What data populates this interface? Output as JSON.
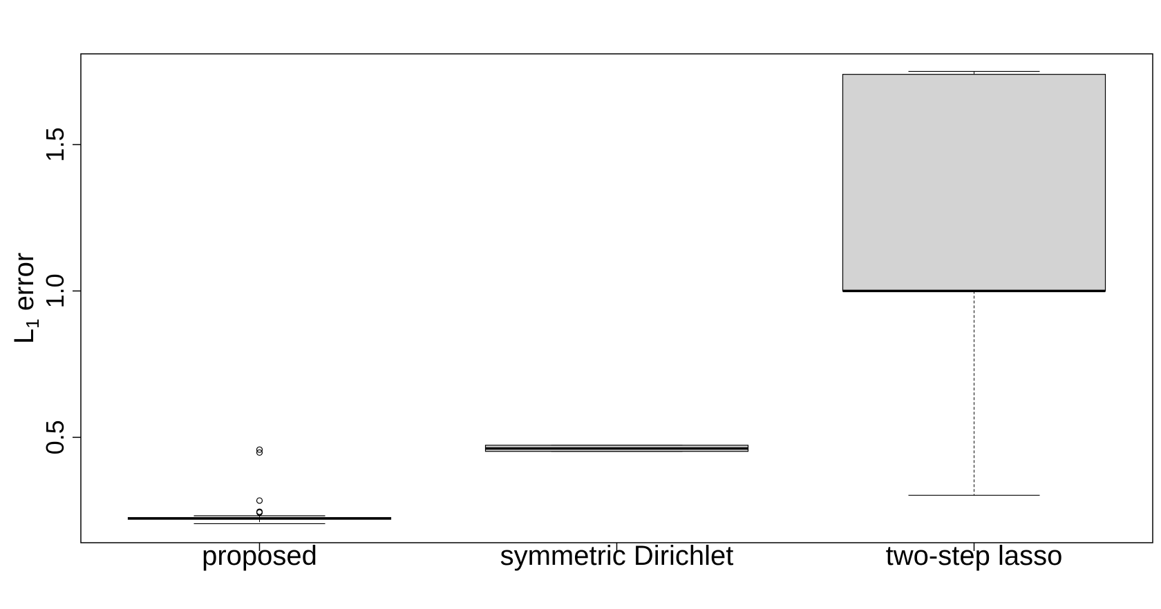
{
  "chart_data": {
    "type": "boxplot",
    "ylabel": "L",
    "ylabel_subscript": "1",
    "ylabel_suffix": " error",
    "ylim": [
      0.14,
      1.81
    ],
    "yticks": [
      0.5,
      1.0,
      1.5
    ],
    "ytick_labels": [
      "0.5",
      "1.0",
      "1.5"
    ],
    "grid": false,
    "box_color": "#d3d3d3",
    "categories": [
      "proposed",
      "symmetric Dirichlet",
      "two-step lasso"
    ],
    "boxes": [
      {
        "name": "proposed",
        "whisker_low": 0.205,
        "q1": 0.22,
        "median": 0.223,
        "q3": 0.226,
        "whisker_high": 0.232,
        "outliers": [
          0.243,
          0.246,
          0.284,
          0.448,
          0.458
        ]
      },
      {
        "name": "symmetric Dirichlet",
        "whisker_low": 0.452,
        "q1": 0.452,
        "median": 0.462,
        "q3": 0.473,
        "whisker_high": 0.473,
        "outliers": []
      },
      {
        "name": "two-step lasso",
        "whisker_low": 0.302,
        "q1": 1.0,
        "median": 1.0,
        "q3": 1.74,
        "whisker_high": 1.75,
        "outliers": []
      }
    ]
  }
}
